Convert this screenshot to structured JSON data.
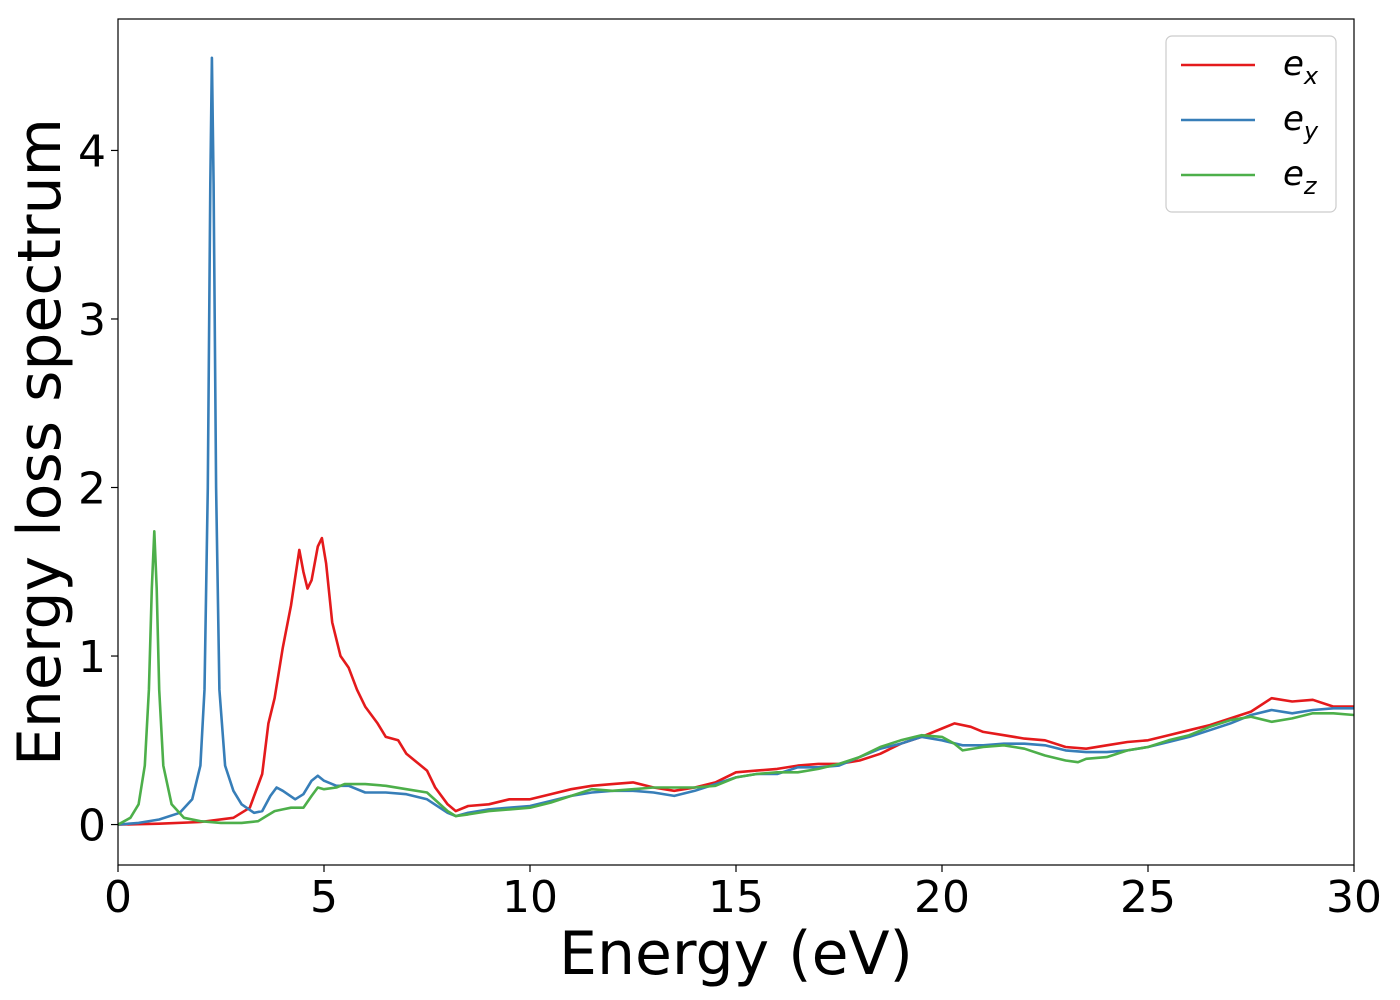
{
  "chart_data": {
    "type": "line",
    "title": "",
    "xlabel": "Energy (eV)",
    "ylabel": "Energy loss spectrum",
    "xlim": [
      0,
      30
    ],
    "ylim": [
      -0.24,
      4.78
    ],
    "xticks": [
      0,
      5,
      10,
      15,
      20,
      25,
      30
    ],
    "yticks": [
      0,
      1,
      2,
      3,
      4
    ],
    "grid": false,
    "legend_position": "top-right",
    "series": [
      {
        "name": "e_x",
        "label_base": "e",
        "label_sub": "x",
        "color": "#e41a1c",
        "points": [
          [
            0,
            0
          ],
          [
            1,
            0.005
          ],
          [
            2,
            0.015
          ],
          [
            2.8,
            0.04
          ],
          [
            3.2,
            0.1
          ],
          [
            3.5,
            0.3
          ],
          [
            3.65,
            0.6
          ],
          [
            3.8,
            0.75
          ],
          [
            4.0,
            1.05
          ],
          [
            4.2,
            1.3
          ],
          [
            4.4,
            1.63
          ],
          [
            4.5,
            1.5
          ],
          [
            4.6,
            1.4
          ],
          [
            4.7,
            1.45
          ],
          [
            4.85,
            1.65
          ],
          [
            4.95,
            1.7
          ],
          [
            5.05,
            1.55
          ],
          [
            5.2,
            1.2
          ],
          [
            5.4,
            1.0
          ],
          [
            5.6,
            0.93
          ],
          [
            5.8,
            0.8
          ],
          [
            6.0,
            0.7
          ],
          [
            6.3,
            0.6
          ],
          [
            6.5,
            0.52
          ],
          [
            6.8,
            0.5
          ],
          [
            7.0,
            0.42
          ],
          [
            7.3,
            0.36
          ],
          [
            7.5,
            0.32
          ],
          [
            7.7,
            0.22
          ],
          [
            8.0,
            0.12
          ],
          [
            8.2,
            0.08
          ],
          [
            8.5,
            0.11
          ],
          [
            9.0,
            0.12
          ],
          [
            9.5,
            0.15
          ],
          [
            10.0,
            0.15
          ],
          [
            10.5,
            0.18
          ],
          [
            11.0,
            0.21
          ],
          [
            11.5,
            0.23
          ],
          [
            12.0,
            0.24
          ],
          [
            12.5,
            0.25
          ],
          [
            13.0,
            0.22
          ],
          [
            13.5,
            0.2
          ],
          [
            14.0,
            0.22
          ],
          [
            14.5,
            0.25
          ],
          [
            15.0,
            0.31
          ],
          [
            15.5,
            0.32
          ],
          [
            16.0,
            0.33
          ],
          [
            16.5,
            0.35
          ],
          [
            17.0,
            0.36
          ],
          [
            17.5,
            0.36
          ],
          [
            18.0,
            0.38
          ],
          [
            18.5,
            0.42
          ],
          [
            19.0,
            0.48
          ],
          [
            19.5,
            0.52
          ],
          [
            20.0,
            0.57
          ],
          [
            20.3,
            0.6
          ],
          [
            20.7,
            0.58
          ],
          [
            21.0,
            0.55
          ],
          [
            21.5,
            0.53
          ],
          [
            22.0,
            0.51
          ],
          [
            22.5,
            0.5
          ],
          [
            23.0,
            0.46
          ],
          [
            23.5,
            0.45
          ],
          [
            24.0,
            0.47
          ],
          [
            24.5,
            0.49
          ],
          [
            25.0,
            0.5
          ],
          [
            25.5,
            0.53
          ],
          [
            26.0,
            0.56
          ],
          [
            26.5,
            0.59
          ],
          [
            27.0,
            0.63
          ],
          [
            27.5,
            0.67
          ],
          [
            28.0,
            0.75
          ],
          [
            28.5,
            0.73
          ],
          [
            29.0,
            0.74
          ],
          [
            29.5,
            0.7
          ],
          [
            30.0,
            0.7
          ]
        ]
      },
      {
        "name": "e_y",
        "label_base": "e",
        "label_sub": "y",
        "color": "#377eb8",
        "points": [
          [
            0,
            0
          ],
          [
            0.5,
            0.01
          ],
          [
            1.0,
            0.03
          ],
          [
            1.5,
            0.07
          ],
          [
            1.8,
            0.15
          ],
          [
            2.0,
            0.35
          ],
          [
            2.1,
            0.8
          ],
          [
            2.18,
            2.0
          ],
          [
            2.24,
            3.8
          ],
          [
            2.28,
            4.55
          ],
          [
            2.32,
            3.8
          ],
          [
            2.38,
            2.0
          ],
          [
            2.46,
            0.8
          ],
          [
            2.6,
            0.35
          ],
          [
            2.8,
            0.2
          ],
          [
            3.0,
            0.12
          ],
          [
            3.3,
            0.07
          ],
          [
            3.5,
            0.08
          ],
          [
            3.7,
            0.17
          ],
          [
            3.85,
            0.22
          ],
          [
            4.0,
            0.2
          ],
          [
            4.3,
            0.15
          ],
          [
            4.5,
            0.18
          ],
          [
            4.7,
            0.26
          ],
          [
            4.85,
            0.29
          ],
          [
            5.0,
            0.26
          ],
          [
            5.3,
            0.23
          ],
          [
            5.6,
            0.23
          ],
          [
            6.0,
            0.19
          ],
          [
            6.5,
            0.19
          ],
          [
            7.0,
            0.18
          ],
          [
            7.5,
            0.15
          ],
          [
            8.0,
            0.07
          ],
          [
            8.2,
            0.05
          ],
          [
            8.5,
            0.07
          ],
          [
            9.0,
            0.09
          ],
          [
            9.5,
            0.1
          ],
          [
            10.0,
            0.11
          ],
          [
            10.5,
            0.14
          ],
          [
            11.0,
            0.17
          ],
          [
            11.5,
            0.19
          ],
          [
            12.0,
            0.2
          ],
          [
            12.5,
            0.2
          ],
          [
            13.0,
            0.19
          ],
          [
            13.5,
            0.17
          ],
          [
            14.0,
            0.2
          ],
          [
            14.5,
            0.24
          ],
          [
            15.0,
            0.28
          ],
          [
            15.5,
            0.3
          ],
          [
            16.0,
            0.3
          ],
          [
            16.5,
            0.34
          ],
          [
            17.0,
            0.34
          ],
          [
            17.5,
            0.35
          ],
          [
            18.0,
            0.4
          ],
          [
            18.5,
            0.45
          ],
          [
            19.0,
            0.48
          ],
          [
            19.5,
            0.52
          ],
          [
            20.0,
            0.5
          ],
          [
            20.5,
            0.47
          ],
          [
            21.0,
            0.47
          ],
          [
            21.5,
            0.48
          ],
          [
            22.0,
            0.48
          ],
          [
            22.5,
            0.47
          ],
          [
            23.0,
            0.44
          ],
          [
            23.5,
            0.43
          ],
          [
            24.0,
            0.43
          ],
          [
            24.5,
            0.44
          ],
          [
            25.0,
            0.46
          ],
          [
            25.5,
            0.49
          ],
          [
            26.0,
            0.52
          ],
          [
            26.5,
            0.56
          ],
          [
            27.0,
            0.6
          ],
          [
            27.5,
            0.65
          ],
          [
            28.0,
            0.68
          ],
          [
            28.5,
            0.66
          ],
          [
            29.0,
            0.68
          ],
          [
            29.5,
            0.69
          ],
          [
            30.0,
            0.69
          ]
        ]
      },
      {
        "name": "e_z",
        "label_base": "e",
        "label_sub": "z",
        "color": "#4daf4a",
        "points": [
          [
            0,
            0
          ],
          [
            0.3,
            0.04
          ],
          [
            0.5,
            0.12
          ],
          [
            0.65,
            0.35
          ],
          [
            0.75,
            0.8
          ],
          [
            0.82,
            1.4
          ],
          [
            0.88,
            1.74
          ],
          [
            0.94,
            1.4
          ],
          [
            1.0,
            0.8
          ],
          [
            1.1,
            0.35
          ],
          [
            1.3,
            0.12
          ],
          [
            1.6,
            0.04
          ],
          [
            2.0,
            0.02
          ],
          [
            2.5,
            0.01
          ],
          [
            3.0,
            0.01
          ],
          [
            3.4,
            0.02
          ],
          [
            3.6,
            0.05
          ],
          [
            3.8,
            0.08
          ],
          [
            4.0,
            0.09
          ],
          [
            4.2,
            0.1
          ],
          [
            4.5,
            0.1
          ],
          [
            4.7,
            0.17
          ],
          [
            4.85,
            0.22
          ],
          [
            5.0,
            0.21
          ],
          [
            5.3,
            0.22
          ],
          [
            5.5,
            0.24
          ],
          [
            6.0,
            0.24
          ],
          [
            6.5,
            0.23
          ],
          [
            7.0,
            0.21
          ],
          [
            7.5,
            0.19
          ],
          [
            8.0,
            0.08
          ],
          [
            8.2,
            0.05
          ],
          [
            8.5,
            0.06
          ],
          [
            9.0,
            0.08
          ],
          [
            9.5,
            0.09
          ],
          [
            10.0,
            0.1
          ],
          [
            10.5,
            0.13
          ],
          [
            11.0,
            0.17
          ],
          [
            11.5,
            0.21
          ],
          [
            12.0,
            0.2
          ],
          [
            12.5,
            0.21
          ],
          [
            13.0,
            0.22
          ],
          [
            13.5,
            0.22
          ],
          [
            14.0,
            0.22
          ],
          [
            14.5,
            0.23
          ],
          [
            15.0,
            0.28
          ],
          [
            15.5,
            0.3
          ],
          [
            16.0,
            0.31
          ],
          [
            16.5,
            0.31
          ],
          [
            17.0,
            0.33
          ],
          [
            17.5,
            0.36
          ],
          [
            18.0,
            0.4
          ],
          [
            18.5,
            0.46
          ],
          [
            19.0,
            0.5
          ],
          [
            19.5,
            0.53
          ],
          [
            20.0,
            0.52
          ],
          [
            20.3,
            0.48
          ],
          [
            20.5,
            0.44
          ],
          [
            21.0,
            0.46
          ],
          [
            21.5,
            0.47
          ],
          [
            22.0,
            0.45
          ],
          [
            22.5,
            0.41
          ],
          [
            23.0,
            0.38
          ],
          [
            23.3,
            0.37
          ],
          [
            23.5,
            0.39
          ],
          [
            24.0,
            0.4
          ],
          [
            24.5,
            0.44
          ],
          [
            25.0,
            0.46
          ],
          [
            25.5,
            0.5
          ],
          [
            26.0,
            0.53
          ],
          [
            26.5,
            0.58
          ],
          [
            27.0,
            0.62
          ],
          [
            27.5,
            0.64
          ],
          [
            28.0,
            0.61
          ],
          [
            28.5,
            0.63
          ],
          [
            29.0,
            0.66
          ],
          [
            29.5,
            0.66
          ],
          [
            30.0,
            0.65
          ]
        ]
      }
    ]
  }
}
